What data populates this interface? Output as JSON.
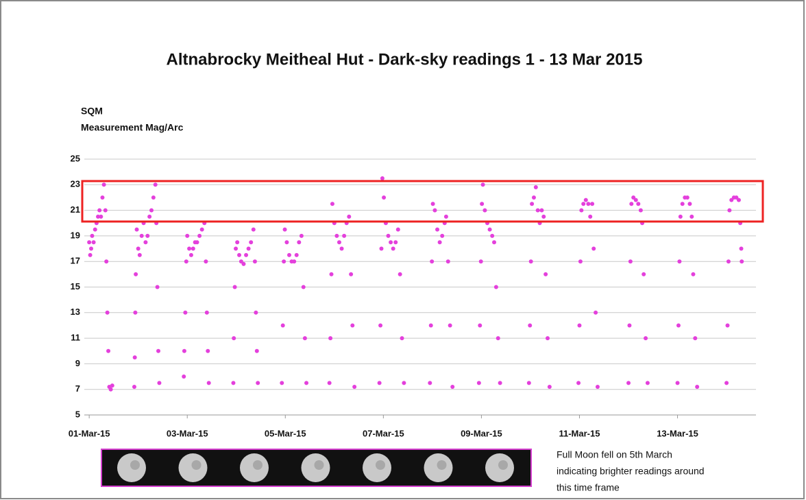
{
  "chart_data": {
    "type": "scatter",
    "title": "Altnabrocky Meitheal Hut - Dark-sky readings 1 - 13 Mar 2015",
    "y_label": [
      "SQM",
      "Measurement Mag/Arc"
    ],
    "annotation": [
      "Full Moon fell on 5th March",
      "indicating brighter  readings around",
      "this time frame"
    ],
    "color": "#e440dc",
    "xlim": [
      -0.1,
      13.6
    ],
    "xticks": [
      {
        "value": 0,
        "label": "01-Mar-15"
      },
      {
        "value": 2,
        "label": "03-Mar-15"
      },
      {
        "value": 4,
        "label": "05-Mar-15"
      },
      {
        "value": 6,
        "label": "07-Mar-15"
      },
      {
        "value": 8,
        "label": "09-Mar-15"
      },
      {
        "value": 10,
        "label": "11-Mar-15"
      },
      {
        "value": 12,
        "label": "13-Mar-15"
      }
    ],
    "ylim": [
      5,
      25
    ],
    "yticks": [
      5,
      7,
      9,
      11,
      13,
      15,
      17,
      19,
      21,
      23,
      25
    ],
    "grid": true,
    "x": [
      0.0,
      0.02,
      0.04,
      0.06,
      0.09,
      0.12,
      0.15,
      0.18,
      0.21,
      0.24,
      0.27,
      0.3,
      0.33,
      0.35,
      0.37,
      0.39,
      0.41,
      0.44,
      0.47,
      0.92,
      0.93,
      0.94,
      0.95,
      0.97,
      1.0,
      1.03,
      1.07,
      1.11,
      1.15,
      1.19,
      1.23,
      1.27,
      1.31,
      1.35,
      1.37,
      1.39,
      1.41,
      1.43,
      1.93,
      1.94,
      1.96,
      1.98,
      2.0,
      2.04,
      2.08,
      2.12,
      2.16,
      2.2,
      2.25,
      2.3,
      2.35,
      2.38,
      2.4,
      2.42,
      2.44,
      2.94,
      2.95,
      2.97,
      2.99,
      3.02,
      3.06,
      3.1,
      3.15,
      3.2,
      3.25,
      3.3,
      3.35,
      3.38,
      3.4,
      3.42,
      3.44,
      3.93,
      3.95,
      3.97,
      3.99,
      4.03,
      4.08,
      4.13,
      4.18,
      4.23,
      4.28,
      4.33,
      4.37,
      4.4,
      4.43,
      4.9,
      4.92,
      4.94,
      4.96,
      5.0,
      5.05,
      5.1,
      5.15,
      5.2,
      5.25,
      5.3,
      5.34,
      5.37,
      5.41,
      5.92,
      5.94,
      5.96,
      5.98,
      6.01,
      6.05,
      6.1,
      6.15,
      6.2,
      6.25,
      6.3,
      6.34,
      6.38,
      6.42,
      6.95,
      6.97,
      6.99,
      7.01,
      7.05,
      7.1,
      7.15,
      7.2,
      7.25,
      7.28,
      7.32,
      7.36,
      7.41,
      7.95,
      7.97,
      7.99,
      8.01,
      8.03,
      8.07,
      8.12,
      8.17,
      8.22,
      8.26,
      8.3,
      8.34,
      8.38,
      8.97,
      8.99,
      9.01,
      9.03,
      9.07,
      9.11,
      9.15,
      9.19,
      9.23,
      9.27,
      9.31,
      9.35,
      9.39,
      9.98,
      10.0,
      10.02,
      10.04,
      10.08,
      10.13,
      10.18,
      10.22,
      10.26,
      10.29,
      10.33,
      10.37,
      11.0,
      11.02,
      11.04,
      11.06,
      11.1,
      11.15,
      11.2,
      11.25,
      11.28,
      11.31,
      11.35,
      11.39,
      12.0,
      12.02,
      12.04,
      12.06,
      12.1,
      12.15,
      12.2,
      12.25,
      12.29,
      12.32,
      12.36,
      12.4,
      13.0,
      13.02,
      13.04,
      13.06,
      13.1,
      13.15,
      13.2,
      13.25,
      13.28,
      13.3,
      13.31
    ],
    "values": [
      18.5,
      17.5,
      18,
      19,
      18.5,
      19.5,
      20,
      20.5,
      21,
      20.5,
      22,
      23,
      21,
      17,
      13,
      10,
      7.2,
      7,
      7.3,
      7.2,
      9.5,
      13,
      16,
      19.5,
      18,
      17.5,
      19,
      20,
      18.5,
      19,
      20.5,
      21,
      22,
      23,
      20,
      15,
      10,
      7.5,
      8,
      10,
      13,
      17,
      19,
      18,
      17.5,
      18,
      18.5,
      18.5,
      19,
      19.5,
      20,
      17,
      13,
      10,
      7.5,
      7.5,
      11,
      15,
      18,
      18.5,
      17.5,
      17,
      16.8,
      17.5,
      18,
      18.5,
      19.5,
      17,
      13,
      10,
      7.5,
      7.5,
      12,
      17,
      19.5,
      18.5,
      17.5,
      17,
      17,
      17.5,
      18.5,
      19,
      15,
      11,
      7.5,
      7.5,
      11,
      16,
      21.5,
      20,
      19,
      18.5,
      18,
      19,
      20,
      20.5,
      16,
      12,
      7.2,
      7.5,
      12,
      18,
      23.5,
      22,
      20,
      19,
      18.5,
      18,
      18.5,
      19.5,
      16,
      11,
      7.5,
      7.5,
      12,
      17,
      21.5,
      21,
      19.5,
      18.5,
      19,
      20,
      20.5,
      17,
      12,
      7.2,
      7.5,
      12,
      17,
      21.5,
      23,
      21,
      20,
      19.5,
      19,
      18.5,
      15,
      11,
      7.5,
      7.5,
      12,
      17,
      21.5,
      22,
      22.8,
      21,
      20,
      21,
      20.5,
      16,
      11,
      7.2,
      7.5,
      12,
      17,
      21,
      21.5,
      21.8,
      21.5,
      20.5,
      21.5,
      18,
      13,
      7.2,
      7.5,
      12,
      17,
      21.5,
      22,
      21.8,
      21.5,
      21,
      20,
      16,
      11,
      7.5,
      7.5,
      12,
      17,
      20.5,
      21.5,
      22,
      22,
      21.5,
      20.5,
      16,
      11,
      7.2,
      7.5,
      12,
      17,
      21,
      21.8,
      22,
      22,
      21.8,
      20,
      18,
      17
    ]
  }
}
